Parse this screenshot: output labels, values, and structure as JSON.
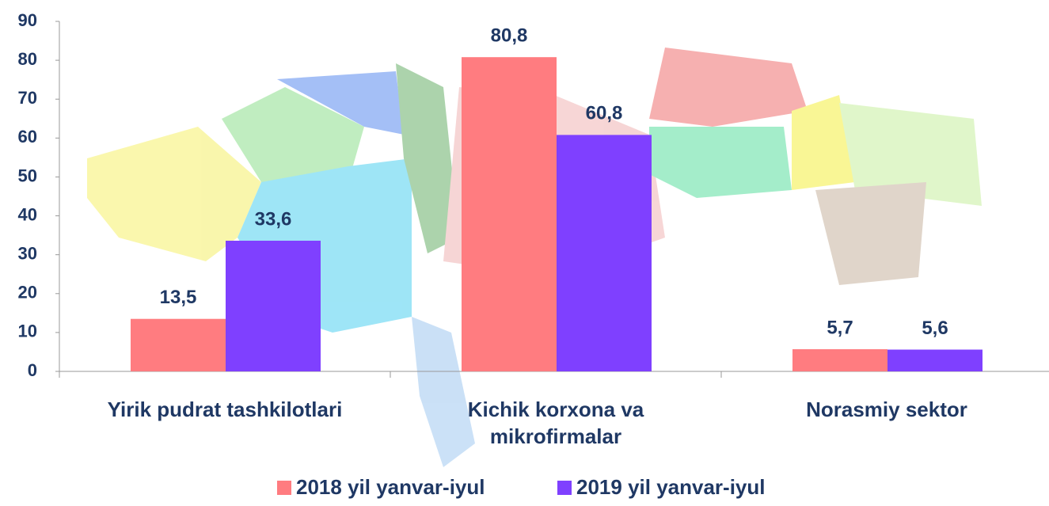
{
  "chart_data": {
    "type": "bar",
    "categories": [
      "Yirik pudrat tashkilotlari",
      "Kichik korxona va mikrofirmalar",
      "Norasmiy sektor"
    ],
    "series": [
      {
        "name": "2018 yil yanvar-iyul",
        "color": "#ff7c80",
        "values": [
          13.5,
          80.8,
          5.7
        ],
        "value_labels": [
          "13,5",
          "80,8",
          "5,7"
        ]
      },
      {
        "name": "2019 yil yanvar-iyul",
        "color": "#7f40ff",
        "values": [
          33.6,
          60.8,
          5.6
        ],
        "value_labels": [
          "33,6",
          "60,8",
          "5,6"
        ]
      }
    ],
    "ylim": [
      0,
      90
    ],
    "yticks": [
      0,
      10,
      20,
      30,
      40,
      50,
      60,
      70,
      80,
      90
    ],
    "grid": false,
    "legend": "bottom"
  }
}
